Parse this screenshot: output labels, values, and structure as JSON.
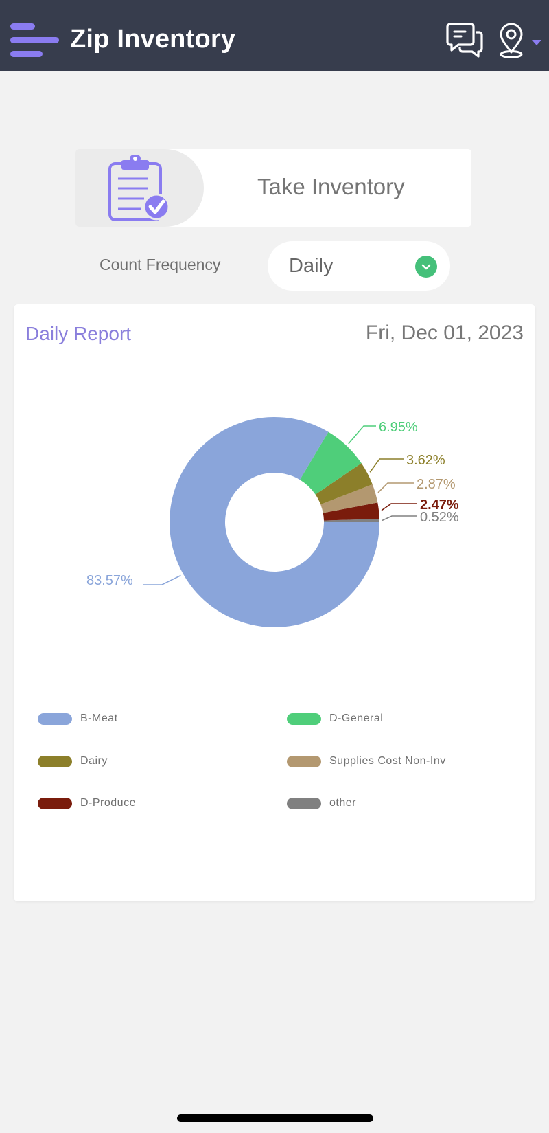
{
  "header": {
    "title": "Zip Inventory",
    "menu_icon": "hamburger-menu-icon",
    "chat_icon": "chat-bubbles-icon",
    "location_icon": "map-pin-icon",
    "colors": {
      "bar_bg": "#373d4d",
      "accent": "#8a7cf0"
    }
  },
  "take_inventory": {
    "label": "Take Inventory",
    "icon": "clipboard-check-icon"
  },
  "count_frequency": {
    "label": "Count Frequency",
    "selected": "Daily",
    "chevron_icon": "chevron-down-icon",
    "chevron_color": "#45c07a"
  },
  "report": {
    "title": "Daily Report",
    "date": "Fri, Dec 01, 2023"
  },
  "chart_data": {
    "type": "pie",
    "subtype": "donut",
    "title": "Daily Report",
    "categories": [
      "B-Meat",
      "D-General",
      "Dairy",
      "Supplies Cost Non-Inv",
      "D-Produce",
      "other"
    ],
    "values": [
      83.57,
      6.95,
      3.62,
      2.87,
      2.47,
      0.52
    ],
    "labels": [
      "83.57%",
      "6.95%",
      "3.62%",
      "2.87%",
      "2.47%",
      "0.52%"
    ],
    "colors": [
      "#8aa5da",
      "#4fce7a",
      "#8c7f2a",
      "#b39870",
      "#7a1c0c",
      "#808080"
    ],
    "label_colors": [
      "#8aa5da",
      "#4fce7a",
      "#8c7f2a",
      "#b39870",
      "#7a1c0c",
      "#808080"
    ],
    "legend_position": "bottom",
    "center": [
      400,
      760
    ],
    "outer_radius": 153,
    "inner_radius": 72,
    "start_angle_deg": 0,
    "direction": "counterclockwise_from_3_oclock_reverse_order"
  },
  "legend": [
    {
      "label": "B-Meat",
      "color": "#8aa5da"
    },
    {
      "label": "D-General",
      "color": "#4fce7a"
    },
    {
      "label": "Dairy",
      "color": "#8c7f2a"
    },
    {
      "label": "Supplies Cost Non-Inv",
      "color": "#b39870"
    },
    {
      "label": "D-Produce",
      "color": "#7a1c0c"
    },
    {
      "label": "other",
      "color": "#808080"
    }
  ]
}
